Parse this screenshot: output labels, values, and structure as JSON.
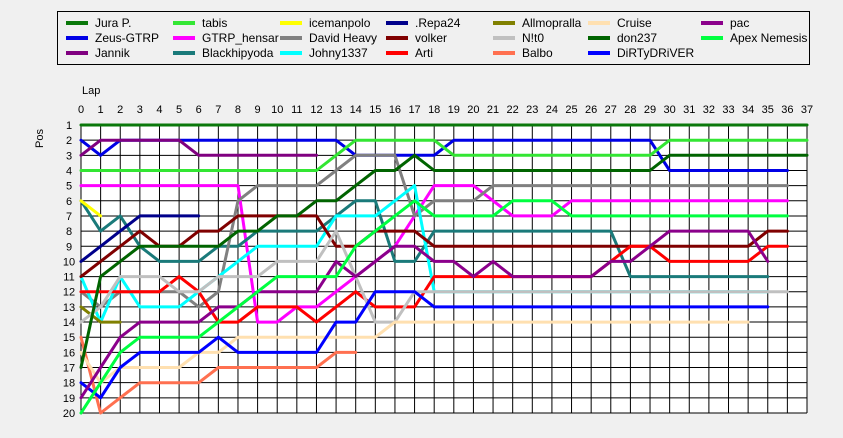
{
  "chart_data": {
    "type": "line",
    "title": "",
    "xlabel": "Lap",
    "ylabel": "Pos",
    "xlim": [
      0,
      37
    ],
    "ylim": [
      1,
      20
    ],
    "x_ticks": [
      "0",
      "1",
      "2",
      "3",
      "4",
      "5",
      "6",
      "7",
      "8",
      "9",
      "10",
      "11",
      "12",
      "13",
      "14",
      "15",
      "16",
      "17",
      "18",
      "19",
      "20",
      "21",
      "22",
      "23",
      "24",
      "25",
      "26",
      "27",
      "28",
      "29",
      "30",
      "31",
      "32",
      "33",
      "34",
      "35",
      "36",
      "37"
    ],
    "y_ticks": [
      "1",
      "2",
      "3",
      "4",
      "5",
      "6",
      "7",
      "8",
      "9",
      "10",
      "11",
      "12",
      "13",
      "14",
      "15",
      "16",
      "17",
      "18",
      "19",
      "20"
    ],
    "grid": true,
    "legend_position": "top",
    "series": [
      {
        "name": "Jura P.",
        "color": "#0a780a",
        "x": [
          0,
          37
        ],
        "y": [
          1,
          1
        ]
      },
      {
        "name": "Zeus-GTRP",
        "color": "#0000e6",
        "x": [
          0,
          1,
          2,
          3,
          4,
          5,
          6,
          7,
          8,
          9,
          10,
          11,
          12,
          13,
          14,
          15,
          16,
          17,
          18,
          19,
          20,
          21,
          22,
          23,
          24,
          25,
          26,
          27,
          28,
          29,
          30,
          31,
          32,
          33,
          34,
          35,
          36
        ],
        "y": [
          2,
          3,
          2,
          2,
          2,
          2,
          2,
          2,
          2,
          2,
          2,
          2,
          2,
          2,
          3,
          3,
          3,
          3,
          3,
          2,
          2,
          2,
          2,
          2,
          2,
          2,
          2,
          2,
          2,
          2,
          4,
          4,
          4,
          4,
          4,
          4,
          4
        ]
      },
      {
        "name": "Jannik",
        "color": "#800080",
        "x": [
          0,
          1,
          2,
          3,
          4,
          5,
          6,
          7,
          8,
          9,
          10,
          11,
          12
        ],
        "y": [
          3,
          2,
          2,
          2,
          2,
          2,
          3,
          3,
          3,
          3,
          3,
          3,
          3
        ]
      },
      {
        "name": "tabis",
        "color": "#33e633",
        "x": [
          0,
          1,
          2,
          3,
          4,
          5,
          6,
          7,
          8,
          9,
          10,
          11,
          12,
          13,
          14,
          15,
          16,
          17,
          18,
          19,
          20,
          21,
          22,
          23,
          24,
          25,
          26,
          27,
          28,
          29,
          30,
          31,
          32,
          33,
          34,
          35,
          36,
          37
        ],
        "y": [
          4,
          4,
          4,
          4,
          4,
          4,
          4,
          4,
          4,
          4,
          4,
          4,
          4,
          3,
          2,
          2,
          2,
          2,
          2,
          3,
          3,
          3,
          3,
          3,
          3,
          3,
          3,
          3,
          3,
          3,
          2,
          2,
          2,
          2,
          2,
          2,
          2,
          2
        ]
      },
      {
        "name": "GTRP_hensar",
        "color": "#ff00ff",
        "x": [
          0,
          1,
          2,
          3,
          4,
          5,
          6,
          7,
          8,
          9,
          10,
          11,
          12,
          13,
          14,
          15,
          16,
          17,
          18,
          19,
          20,
          21,
          22,
          23,
          24,
          25,
          26,
          27,
          28,
          29,
          30,
          31,
          32,
          33,
          34,
          35,
          36
        ],
        "y": [
          5,
          5,
          5,
          5,
          5,
          5,
          5,
          5,
          5,
          14,
          14,
          13,
          13,
          12,
          11,
          10,
          9,
          7,
          5,
          5,
          5,
          6,
          7,
          7,
          7,
          6,
          6,
          6,
          6,
          6,
          6,
          6,
          6,
          6,
          6,
          6,
          6
        ]
      },
      {
        "name": "Blackhipyoda",
        "color": "#1a7a7a",
        "x": [
          0,
          1,
          2,
          3,
          4,
          5,
          6,
          7,
          8,
          9,
          10,
          11,
          12,
          13,
          14,
          15,
          16,
          17,
          18,
          19,
          20,
          21,
          22,
          23,
          24,
          25,
          26,
          27,
          28,
          29,
          30,
          31,
          32,
          33,
          34,
          35
        ],
        "y": [
          6,
          8,
          7,
          9,
          10,
          10,
          10,
          9,
          9,
          8,
          8,
          8,
          8,
          7,
          6,
          6,
          10,
          10,
          8,
          8,
          8,
          8,
          8,
          8,
          8,
          8,
          8,
          8,
          11,
          11,
          11,
          11,
          11,
          11,
          11,
          11
        ]
      },
      {
        "name": "icemanpolo",
        "color": "#ffff00",
        "x": [
          0,
          1
        ],
        "y": [
          6,
          7
        ]
      },
      {
        "name": "David Heavy",
        "color": "#808080",
        "x": [
          0,
          1,
          2,
          3,
          4,
          5,
          6,
          7,
          8,
          9,
          10,
          11,
          12,
          13,
          14,
          15,
          16,
          17,
          18,
          19,
          20,
          21,
          22,
          23,
          24,
          25,
          26,
          27,
          28,
          29,
          30,
          31,
          32,
          33,
          34,
          35,
          36
        ],
        "y": [
          12,
          13,
          12,
          12,
          12,
          12,
          13,
          12,
          6,
          5,
          5,
          5,
          5,
          4,
          3,
          3,
          3,
          7,
          6,
          6,
          6,
          5,
          5,
          5,
          5,
          5,
          5,
          5,
          5,
          5,
          5,
          5,
          5,
          5,
          5,
          5,
          5
        ]
      },
      {
        "name": "Johny1337",
        "color": "#00ffff",
        "x": [
          0,
          1,
          2,
          3,
          4,
          5,
          6,
          7,
          8,
          9,
          10,
          11,
          12,
          13,
          14,
          15,
          16,
          17,
          18,
          19,
          20,
          21,
          22,
          23,
          24,
          25,
          26,
          27,
          28,
          29,
          30,
          31,
          32,
          33,
          34,
          35
        ],
        "y": [
          11,
          14,
          11,
          13,
          13,
          13,
          12,
          11,
          10,
          9,
          9,
          9,
          9,
          7,
          7,
          7,
          6,
          5,
          12,
          12,
          12,
          12,
          12,
          12,
          12,
          12,
          12,
          12,
          12,
          12,
          12,
          12,
          12,
          12,
          12,
          12
        ]
      },
      {
        "name": ".Repa24",
        "color": "#00008b",
        "x": [
          0,
          1,
          2,
          3,
          4,
          5,
          6
        ],
        "y": [
          10,
          9,
          8,
          7,
          7,
          7,
          7
        ]
      },
      {
        "name": "volker",
        "color": "#800000",
        "x": [
          0,
          1,
          2,
          3,
          4,
          5,
          6,
          7,
          8,
          9,
          10,
          11,
          12,
          13,
          14,
          15,
          16,
          17,
          18,
          19,
          20,
          21,
          22,
          23,
          24,
          25,
          26,
          27,
          28,
          29,
          30,
          31,
          32,
          33,
          34,
          35,
          36
        ],
        "y": [
          11,
          10,
          9,
          8,
          9,
          9,
          8,
          8,
          7,
          7,
          7,
          7,
          7,
          9,
          9,
          8,
          8,
          8,
          9,
          9,
          9,
          9,
          9,
          9,
          9,
          9,
          9,
          9,
          9,
          9,
          9,
          9,
          9,
          9,
          9,
          8,
          8
        ]
      },
      {
        "name": "Arti",
        "color": "#ff0000",
        "x": [
          0,
          1,
          2,
          3,
          4,
          5,
          6,
          7,
          8,
          9,
          10,
          11,
          12,
          13,
          14,
          15,
          16,
          17,
          18,
          19,
          20,
          21,
          22,
          23,
          24,
          25,
          26,
          27,
          28,
          29,
          30,
          31,
          32,
          33,
          34,
          35,
          36
        ],
        "y": [
          12,
          12,
          12,
          12,
          12,
          11,
          12,
          14,
          14,
          13,
          13,
          13,
          14,
          13,
          12,
          13,
          13,
          13,
          11,
          11,
          11,
          11,
          11,
          11,
          11,
          11,
          11,
          10,
          9,
          9,
          10,
          10,
          10,
          10,
          10,
          9,
          9
        ]
      },
      {
        "name": "Allmopralla",
        "color": "#808000",
        "x": [
          0,
          1,
          2
        ],
        "y": [
          13,
          14,
          14
        ]
      },
      {
        "name": "N!t0",
        "color": "#c0c0c0",
        "x": [
          0,
          1,
          2,
          3,
          4,
          5,
          6,
          7,
          8,
          9,
          10,
          11,
          12,
          13,
          14,
          15,
          16,
          17,
          18,
          19,
          20,
          21,
          22,
          23,
          24,
          25,
          26,
          27,
          28,
          29,
          30,
          31,
          32,
          33,
          34,
          35,
          36
        ],
        "y": [
          14,
          13,
          11,
          11,
          11,
          12,
          12,
          11,
          11,
          11,
          10,
          10,
          10,
          8,
          11,
          14,
          14,
          12,
          12,
          12,
          12,
          12,
          12,
          12,
          12,
          12,
          12,
          12,
          12,
          12,
          12,
          12,
          12,
          12,
          12,
          12,
          12
        ]
      },
      {
        "name": "Balbo",
        "color": "#ff7050",
        "x": [
          0,
          1,
          2,
          3,
          4,
          5,
          6,
          7,
          8,
          9,
          10,
          11,
          12,
          13,
          14
        ],
        "y": [
          15,
          20,
          19,
          18,
          18,
          18,
          18,
          17,
          17,
          17,
          17,
          17,
          17,
          16,
          16
        ]
      },
      {
        "name": "Cruise",
        "color": "#ffe0b0",
        "x": [
          0,
          1,
          2,
          3,
          4,
          5,
          6,
          7,
          8,
          9,
          10,
          11,
          12,
          13,
          14,
          15,
          16,
          17,
          18,
          19,
          20,
          21,
          22,
          23,
          24,
          25,
          26,
          27,
          28,
          29,
          30,
          31,
          32,
          33,
          34
        ],
        "y": [
          16,
          18,
          17,
          17,
          17,
          17,
          16,
          16,
          15,
          15,
          15,
          15,
          15,
          15,
          15,
          15,
          14,
          14,
          14,
          14,
          14,
          14,
          14,
          14,
          14,
          14,
          14,
          14,
          14,
          14,
          14,
          14,
          14,
          14,
          14
        ]
      },
      {
        "name": "don237",
        "color": "#006400",
        "x": [
          0,
          1,
          2,
          3,
          4,
          5,
          6,
          7,
          8,
          9,
          10,
          11,
          12,
          13,
          14,
          15,
          16,
          17,
          18,
          19,
          20,
          21,
          22,
          23,
          24,
          25,
          26,
          27,
          28,
          29,
          30,
          31,
          32,
          33,
          34,
          35,
          36,
          37
        ],
        "y": [
          17,
          11,
          10,
          9,
          9,
          9,
          9,
          9,
          8,
          8,
          7,
          7,
          6,
          6,
          5,
          4,
          4,
          3,
          4,
          4,
          4,
          4,
          4,
          4,
          4,
          4,
          4,
          4,
          4,
          4,
          3,
          3,
          3,
          3,
          3,
          3,
          3,
          3
        ]
      },
      {
        "name": "DiRTyDRiVER",
        "color": "#0000ff",
        "x": [
          0,
          1,
          2,
          3,
          4,
          5,
          6,
          7,
          8,
          9,
          10,
          11,
          12,
          13,
          14,
          15,
          16,
          17,
          18,
          19,
          20,
          21,
          22,
          23,
          24,
          25,
          26,
          27,
          28,
          29,
          30,
          31,
          32,
          33,
          34,
          35
        ],
        "y": [
          18,
          19,
          17,
          16,
          16,
          16,
          16,
          15,
          16,
          16,
          16,
          16,
          16,
          14,
          14,
          12,
          12,
          12,
          13,
          13,
          13,
          13,
          13,
          13,
          13,
          13,
          13,
          13,
          13,
          13,
          13,
          13,
          13,
          13,
          13,
          13
        ]
      },
      {
        "name": "pac",
        "color": "#8b008b",
        "x": [
          0,
          1,
          2,
          3,
          4,
          5,
          6,
          7,
          8,
          9,
          10,
          11,
          12,
          13,
          14,
          15,
          16,
          17,
          18,
          19,
          20,
          21,
          22,
          23,
          24,
          25,
          26,
          27,
          28,
          29,
          30,
          31,
          32,
          33,
          34,
          35
        ],
        "y": [
          19,
          17,
          15,
          14,
          14,
          14,
          14,
          13,
          13,
          12,
          12,
          12,
          12,
          10,
          11,
          10,
          9,
          9,
          10,
          10,
          11,
          10,
          11,
          11,
          11,
          11,
          11,
          10,
          10,
          9,
          8,
          8,
          8,
          8,
          8,
          10
        ]
      },
      {
        "name": "Apex Nemesis",
        "color": "#00ff40",
        "x": [
          0,
          1,
          2,
          3,
          4,
          5,
          6,
          7,
          8,
          9,
          10,
          11,
          12,
          13,
          14,
          15,
          16,
          17,
          18,
          19,
          20,
          21,
          22,
          23,
          24,
          25,
          26,
          27,
          28,
          29,
          30,
          31,
          32,
          33,
          34,
          35,
          36
        ],
        "y": [
          20,
          18,
          16,
          15,
          15,
          15,
          15,
          14,
          13,
          12,
          11,
          11,
          11,
          11,
          9,
          8,
          7,
          6,
          7,
          7,
          7,
          7,
          6,
          6,
          6,
          7,
          7,
          7,
          7,
          7,
          7,
          7,
          7,
          7,
          7,
          7,
          7
        ]
      }
    ]
  },
  "legend_layout_cols": 7
}
